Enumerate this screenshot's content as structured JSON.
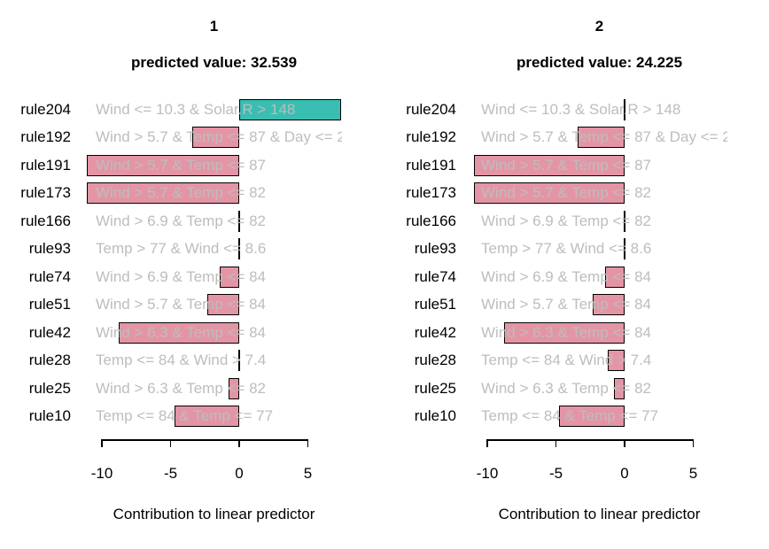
{
  "colors": {
    "positive": "#39BEB1",
    "negative": "#E495A5",
    "zero_line": "#000000",
    "condition_text": "#BDBDBD"
  },
  "panels": [
    {
      "title": "1",
      "predicted_label": "predicted value: 32.539",
      "rows": [
        {
          "rule": "rule204",
          "condition": "Wind <= 10.3 & Solar.R > 148",
          "value": 7.4
        },
        {
          "rule": "rule192",
          "condition": "Wind > 5.7 & Temp <= 87 & Day <= 2",
          "value": -3.4
        },
        {
          "rule": "rule191",
          "condition": "Wind > 5.7 & Temp <= 87",
          "value": -11.1
        },
        {
          "rule": "rule173",
          "condition": "Wind > 5.7 & Temp <= 82",
          "value": -11.1
        },
        {
          "rule": "rule166",
          "condition": "Wind > 6.9 & Temp <= 82",
          "value": 0
        },
        {
          "rule": "rule93",
          "condition": "Temp > 77 & Wind <= 8.6",
          "value": 0
        },
        {
          "rule": "rule74",
          "condition": "Wind > 6.9 & Temp <= 84",
          "value": -1.4
        },
        {
          "rule": "rule51",
          "condition": "Wind > 5.7 & Temp <= 84",
          "value": -2.3
        },
        {
          "rule": "rule42",
          "condition": "Wind > 6.3 & Temp <= 84",
          "value": -8.8
        },
        {
          "rule": "rule28",
          "condition": "Temp <= 84 & Wind > 7.4",
          "value": 0
        },
        {
          "rule": "rule25",
          "condition": "Wind > 6.3 & Temp <= 82",
          "value": -0.8
        },
        {
          "rule": "rule10",
          "condition": "Temp <= 84 & Temp <= 77",
          "value": -4.7
        }
      ],
      "axis": {
        "ticks": [
          -10,
          -5,
          0,
          5
        ],
        "label": "Contribution to linear predictor"
      }
    },
    {
      "title": "2",
      "predicted_label": "predicted value: 24.225",
      "rows": [
        {
          "rule": "rule204",
          "condition": "Wind <= 10.3 & Solar.R > 148",
          "value": 0
        },
        {
          "rule": "rule192",
          "condition": "Wind > 5.7 & Temp <= 87 & Day <= 2",
          "value": -3.4
        },
        {
          "rule": "rule191",
          "condition": "Wind > 5.7 & Temp <= 87",
          "value": -11.0
        },
        {
          "rule": "rule173",
          "condition": "Wind > 5.7 & Temp <= 82",
          "value": -11.0
        },
        {
          "rule": "rule166",
          "condition": "Wind > 6.9 & Temp <= 82",
          "value": 0
        },
        {
          "rule": "rule93",
          "condition": "Temp > 77 & Wind <= 8.6",
          "value": 0
        },
        {
          "rule": "rule74",
          "condition": "Wind > 6.9 & Temp <= 84",
          "value": -1.4
        },
        {
          "rule": "rule51",
          "condition": "Wind > 5.7 & Temp <= 84",
          "value": -2.3
        },
        {
          "rule": "rule42",
          "condition": "Wind > 6.3 & Temp <= 84",
          "value": -8.8
        },
        {
          "rule": "rule28",
          "condition": "Temp <= 84 & Wind > 7.4",
          "value": -1.2
        },
        {
          "rule": "rule25",
          "condition": "Wind > 6.3 & Temp <= 82",
          "value": -0.8
        },
        {
          "rule": "rule10",
          "condition": "Temp <= 84 & Temp <= 77",
          "value": -4.8
        }
      ],
      "axis": {
        "ticks": [
          -10,
          -5,
          0,
          5
        ],
        "label": "Contribution to linear predictor"
      }
    }
  ],
  "chart_data": {
    "type": "bar",
    "orientation": "horizontal",
    "categories": [
      "rule204",
      "rule192",
      "rule191",
      "rule173",
      "rule166",
      "rule93",
      "rule74",
      "rule51",
      "rule42",
      "rule28",
      "rule25",
      "rule10"
    ],
    "rule_conditions": [
      "Wind <= 10.3 & Solar.R > 148",
      "Wind > 5.7 & Temp <= 87 & Day <= 2",
      "Wind > 5.7 & Temp <= 87",
      "Wind > 5.7 & Temp <= 82",
      "Wind > 6.9 & Temp <= 82",
      "Temp > 77 & Wind <= 8.6",
      "Wind > 6.9 & Temp <= 84",
      "Wind > 5.7 & Temp <= 84",
      "Wind > 6.3 & Temp <= 84",
      "Temp <= 84 & Wind > 7.4",
      "Wind > 6.3 & Temp <= 82",
      "Temp <= 84 & Temp <= 77"
    ],
    "series": [
      {
        "name": "1",
        "predicted_value": 32.539,
        "values": [
          7.4,
          -3.4,
          -11.1,
          -11.1,
          0,
          0,
          -1.4,
          -2.3,
          -8.8,
          0,
          -0.8,
          -4.7
        ]
      },
      {
        "name": "2",
        "predicted_value": 24.225,
        "values": [
          0,
          -3.4,
          -11.0,
          -11.0,
          0,
          0,
          -1.4,
          -2.3,
          -8.8,
          -1.2,
          -0.8,
          -4.8
        ]
      }
    ],
    "xlabel": "Contribution to linear predictor",
    "xticks": [
      -10,
      -5,
      0,
      5
    ],
    "xlim": [
      -11.5,
      7.5
    ],
    "grid": false,
    "legend": false,
    "bar_colors": {
      "positive": "#39BEB1",
      "negative": "#E495A5"
    }
  }
}
